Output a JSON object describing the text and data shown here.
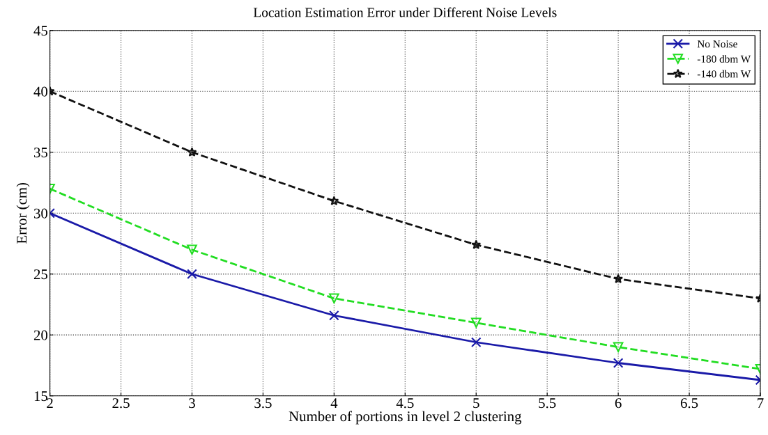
{
  "chart_data": {
    "type": "line",
    "title": "Location Estimation Error under Different Noise Levels",
    "xlabel": "Number of portions in level 2 clustering",
    "ylabel": "Error (cm)",
    "x": [
      2,
      3,
      4,
      5,
      6,
      7
    ],
    "series": [
      {
        "name": "No Noise",
        "color": "#1a1aa8",
        "values": [
          30,
          25,
          21.6,
          19.4,
          17.7,
          16.3
        ],
        "marker": "cross",
        "line_style": "solid"
      },
      {
        "name": "-180 dbm W",
        "color": "#22dd22",
        "values": [
          32,
          27,
          23,
          21,
          19,
          17.2
        ],
        "marker": "triangle",
        "line_style": "dashed"
      },
      {
        "name": "-140 dbm W",
        "color": "#111111",
        "values": [
          40,
          35,
          31,
          27.4,
          24.6,
          23
        ],
        "marker": "star",
        "line_style": "dashed"
      }
    ],
    "xlim": [
      2,
      7
    ],
    "xticks": [
      2,
      2.5,
      3,
      3.5,
      4,
      4.5,
      5,
      5.5,
      6,
      6.5,
      7
    ],
    "ylim": [
      15,
      45
    ],
    "yticks": [
      15,
      20,
      25,
      30,
      35,
      40,
      45
    ],
    "grid": true,
    "legend": "top right"
  }
}
